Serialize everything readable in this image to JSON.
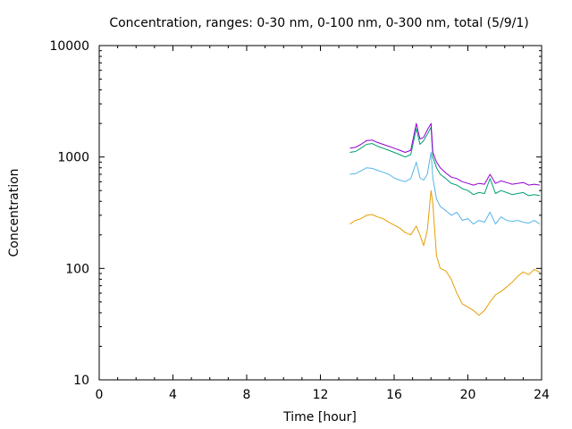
{
  "chart_data": {
    "type": "line",
    "title": "Concentration, ranges: 0-30 nm, 0-100 nm, 0-300 nm, total (5/9/1)",
    "xlabel": "Time [hour]",
    "ylabel": "Concentration",
    "xlim": [
      0,
      24
    ],
    "ylim": [
      10,
      10000
    ],
    "yscale": "log",
    "grid": false,
    "x_ticks": [
      0,
      4,
      8,
      12,
      16,
      20,
      24
    ],
    "x_tick_labels": [
      "0",
      "4",
      "8",
      "12",
      "16",
      "20",
      "24"
    ],
    "y_ticks": [
      10,
      100,
      1000,
      10000
    ],
    "y_tick_labels": [
      "10",
      "100",
      "1000",
      "10000"
    ],
    "series": [
      {
        "color": "#e69f00",
        "x": [
          13.6,
          13.9,
          14.2,
          14.5,
          14.8,
          15.1,
          15.4,
          15.7,
          16.0,
          16.3,
          16.6,
          16.9,
          17.2,
          17.4,
          17.6,
          17.8,
          18.0,
          18.1,
          18.3,
          18.5,
          18.8,
          19.1,
          19.4,
          19.7,
          20.0,
          20.3,
          20.6,
          20.9,
          21.2,
          21.5,
          21.8,
          22.1,
          22.4,
          22.7,
          23.0,
          23.3,
          23.6,
          23.9
        ],
        "y": [
          250,
          270,
          280,
          300,
          305,
          290,
          280,
          260,
          245,
          230,
          210,
          200,
          240,
          200,
          160,
          220,
          500,
          380,
          130,
          100,
          95,
          80,
          60,
          48,
          45,
          42,
          38,
          42,
          50,
          58,
          62,
          68,
          75,
          85,
          93,
          88,
          98,
          92
        ]
      },
      {
        "color": "#56b4e9",
        "x": [
          13.6,
          13.9,
          14.2,
          14.5,
          14.8,
          15.1,
          15.4,
          15.7,
          16.0,
          16.3,
          16.6,
          16.9,
          17.2,
          17.4,
          17.6,
          17.8,
          18.0,
          18.1,
          18.3,
          18.5,
          18.8,
          19.1,
          19.4,
          19.7,
          20.0,
          20.3,
          20.6,
          20.9,
          21.2,
          21.5,
          21.8,
          22.1,
          22.4,
          22.7,
          23.0,
          23.3,
          23.6,
          23.9
        ],
        "y": [
          700,
          710,
          750,
          800,
          790,
          760,
          730,
          700,
          650,
          620,
          600,
          640,
          900,
          650,
          620,
          700,
          1100,
          650,
          420,
          360,
          330,
          300,
          320,
          270,
          280,
          250,
          270,
          260,
          320,
          250,
          290,
          270,
          265,
          270,
          260,
          255,
          270,
          250
        ]
      },
      {
        "color": "#009e73",
        "x": [
          13.6,
          13.9,
          14.2,
          14.5,
          14.8,
          15.1,
          15.4,
          15.7,
          16.0,
          16.3,
          16.6,
          16.9,
          17.2,
          17.4,
          17.6,
          17.8,
          18.0,
          18.1,
          18.3,
          18.5,
          18.8,
          19.1,
          19.4,
          19.7,
          20.0,
          20.3,
          20.6,
          20.9,
          21.2,
          21.5,
          21.8,
          22.1,
          22.4,
          22.7,
          23.0,
          23.3,
          23.6,
          23.9
        ],
        "y": [
          1100,
          1120,
          1200,
          1300,
          1320,
          1250,
          1200,
          1150,
          1100,
          1050,
          1000,
          1050,
          1800,
          1300,
          1400,
          1600,
          1850,
          1000,
          800,
          700,
          640,
          580,
          560,
          520,
          500,
          460,
          480,
          470,
          640,
          470,
          500,
          480,
          460,
          470,
          480,
          450,
          460,
          450
        ]
      },
      {
        "color": "#9400d3",
        "x": [
          13.6,
          13.9,
          14.2,
          14.5,
          14.8,
          15.1,
          15.4,
          15.7,
          16.0,
          16.3,
          16.6,
          16.9,
          17.2,
          17.4,
          17.6,
          17.8,
          18.0,
          18.1,
          18.3,
          18.5,
          18.8,
          19.1,
          19.4,
          19.7,
          20.0,
          20.3,
          20.6,
          20.9,
          21.2,
          21.5,
          21.8,
          22.1,
          22.4,
          22.7,
          23.0,
          23.3,
          23.6,
          23.9
        ],
        "y": [
          1200,
          1220,
          1300,
          1400,
          1420,
          1350,
          1300,
          1250,
          1200,
          1150,
          1100,
          1150,
          2000,
          1450,
          1500,
          1750,
          2000,
          1100,
          900,
          800,
          720,
          660,
          640,
          600,
          580,
          560,
          580,
          570,
          700,
          580,
          610,
          590,
          570,
          580,
          590,
          560,
          570,
          560
        ]
      }
    ]
  }
}
